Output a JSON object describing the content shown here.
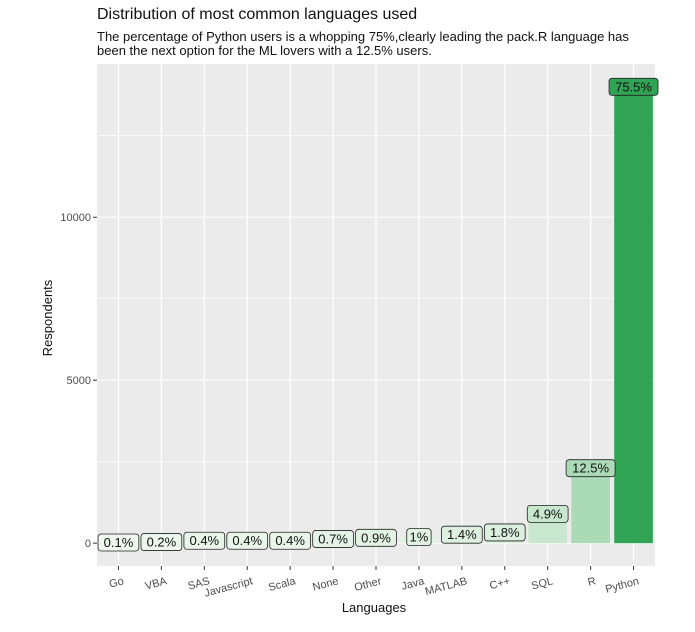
{
  "chart_data": {
    "type": "bar",
    "title": "Distribution of most common languages used",
    "subtitle": "The percentage of Python users is a whopping 75%,clearly leading the pack.R language has been the next option for the ML lovers with a 12.5% users.",
    "xlabel": "Languages",
    "ylabel": "Respondents",
    "categories": [
      "Go",
      "VBA",
      "SAS",
      "Javascript",
      "Scala",
      "None",
      "Other",
      "Java",
      "MATLAB",
      "C++",
      "SQL",
      "R",
      "Python"
    ],
    "values": [
      20,
      35,
      75,
      75,
      75,
      130,
      165,
      185,
      260,
      330,
      900,
      2300,
      14000
    ],
    "labels": [
      "0.1%",
      "0.2%",
      "0.4%",
      "0.4%",
      "0.4%",
      "0.7%",
      "0.9%",
      "1%",
      "1.4%",
      "1.8%",
      "4.9%",
      "12.5%",
      "75.5%"
    ],
    "yticks": [
      0,
      5000,
      10000
    ],
    "ytick_labels": [
      "0",
      "5000",
      "10000"
    ],
    "ylim": [
      -700,
      14700
    ],
    "grid": true,
    "colors": {
      "panel": "#ebebeb",
      "gridline": "#ffffff",
      "bar_low": "#f3faf1",
      "bar_high": "#31a354",
      "text": "#111111",
      "axis_text": "#4d4d4d"
    }
  }
}
